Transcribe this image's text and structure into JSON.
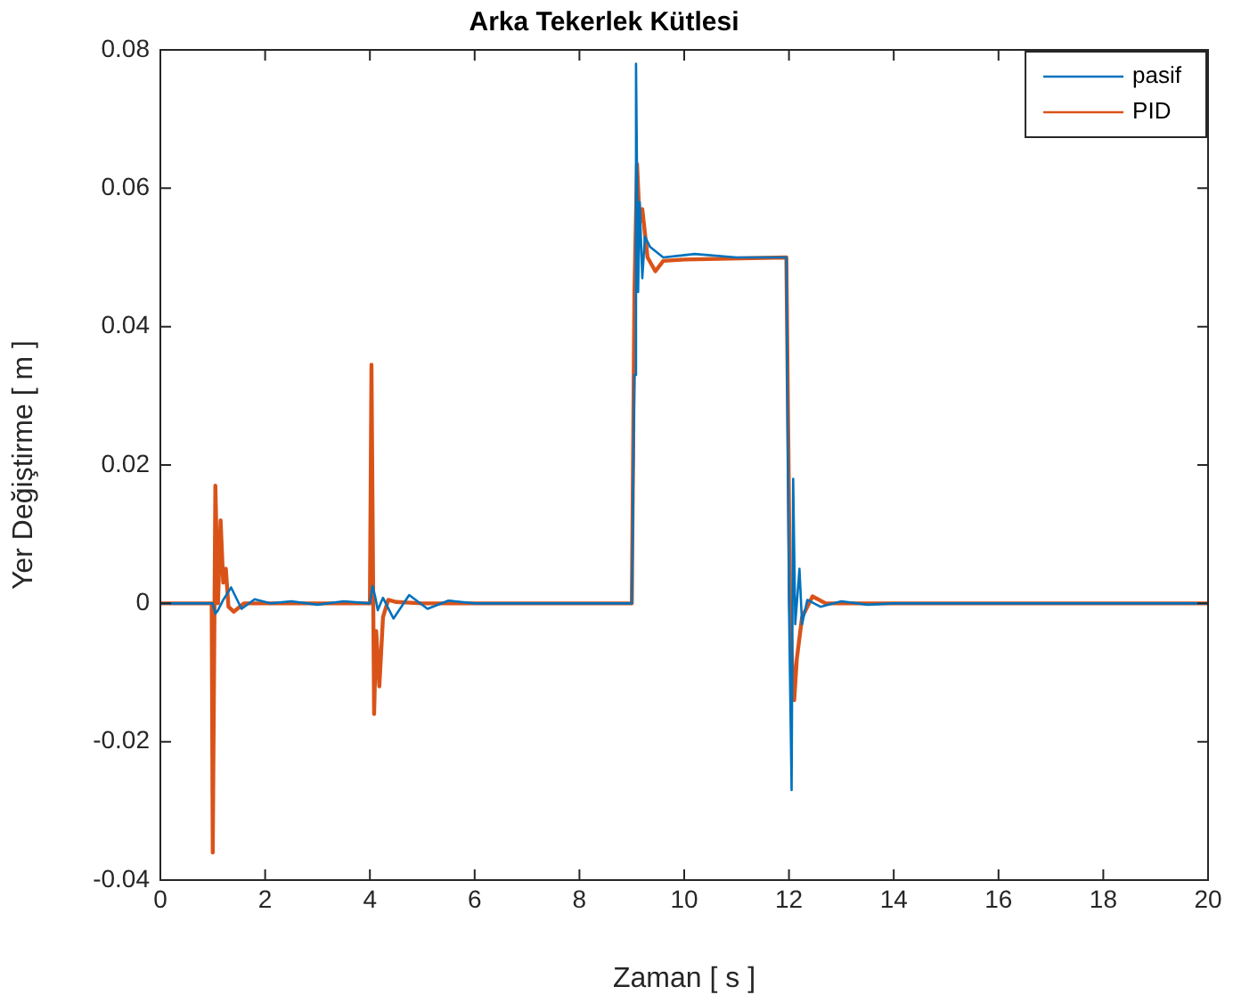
{
  "chart_data": {
    "type": "line",
    "title": "Arka Tekerlek Kütlesi",
    "xlabel": "Zaman [ s ]",
    "ylabel": "Yer Değiştirme [ m ]",
    "xlim": [
      0,
      20
    ],
    "xticks": [
      0,
      2,
      4,
      6,
      8,
      10,
      12,
      14,
      16,
      18,
      20
    ],
    "ylim": [
      -0.04,
      0.08
    ],
    "yticks": [
      -0.04,
      -0.02,
      0,
      0.02,
      0.04,
      0.06,
      0.08
    ],
    "grid": false,
    "legend": "top right",
    "marker": "none",
    "line_style": "solid",
    "series": [
      {
        "name": "pasif",
        "color": "#0072bd",
        "x": [
          0,
          1.0,
          1.05,
          1.1,
          1.2,
          1.35,
          1.55,
          1.8,
          2.1,
          2.5,
          3.0,
          3.5,
          4.0,
          4.05,
          4.1,
          4.15,
          4.25,
          4.45,
          4.75,
          5.1,
          5.5,
          6,
          9.0,
          9.05,
          9.08,
          9.12,
          9.15,
          9.2,
          9.25,
          9.35,
          9.6,
          10.2,
          11,
          11.95,
          12.0,
          12.05,
          12.08,
          12.12,
          12.2,
          12.25,
          12.35,
          12.6,
          13,
          13.5,
          14,
          20
        ],
        "values": [
          0,
          0,
          -0.0015,
          -0.001,
          0.0005,
          0.0023,
          -0.0008,
          0.0006,
          0,
          0.0003,
          -0.0002,
          0.0003,
          0,
          0.0025,
          0.001,
          -0.001,
          0.0008,
          -0.0022,
          0.0012,
          -0.0008,
          0.0004,
          0,
          0,
          0.033,
          0.078,
          0.045,
          0.058,
          0.047,
          0.053,
          0.0515,
          0.05,
          0.0505,
          0.05,
          0.05,
          0,
          -0.027,
          0.018,
          -0.003,
          0.005,
          -0.003,
          0.0005,
          -0.0005,
          0.0003,
          -0.0002,
          0,
          0
        ]
      },
      {
        "name": "PID",
        "color": "#d95319",
        "x": [
          0,
          0.98,
          1.0,
          1.05,
          1.1,
          1.15,
          1.2,
          1.25,
          1.3,
          1.4,
          1.6,
          2,
          4.0,
          4.03,
          4.08,
          4.12,
          4.18,
          4.25,
          4.35,
          4.5,
          5,
          9.0,
          9.05,
          9.1,
          9.15,
          9.2,
          9.3,
          9.45,
          9.6,
          10,
          11.95,
          12.02,
          12.05,
          12.1,
          12.15,
          12.25,
          12.45,
          12.7,
          20
        ],
        "values": [
          0,
          0,
          -0.036,
          0.017,
          0,
          0.012,
          0.003,
          0.005,
          -0.0005,
          -0.0012,
          0,
          0,
          0,
          0.0345,
          -0.016,
          -0.004,
          -0.012,
          -0.002,
          0.0005,
          0.0002,
          0,
          0,
          0.045,
          0.0635,
          0.055,
          0.057,
          0.05,
          0.048,
          0.0495,
          0.0497,
          0.05,
          0,
          -0.007,
          -0.014,
          -0.008,
          -0.002,
          0.001,
          0,
          0
        ]
      }
    ]
  }
}
